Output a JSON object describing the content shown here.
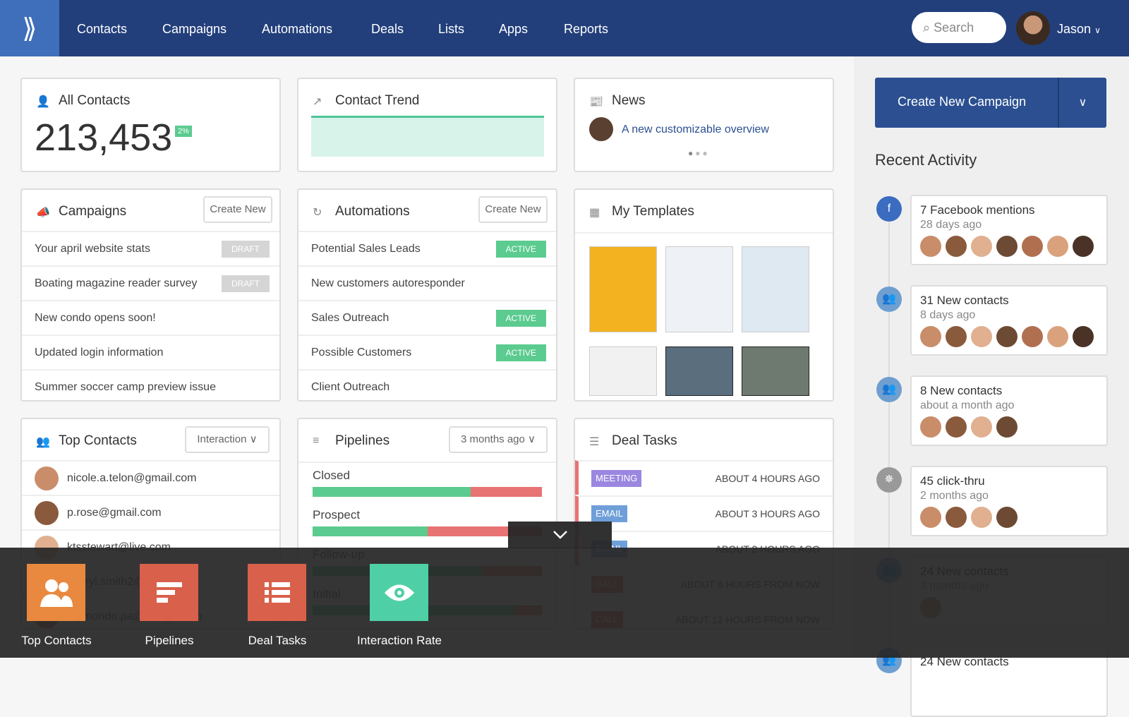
{
  "nav": {
    "items": [
      "Contacts",
      "Campaigns",
      "Automations",
      "Deals",
      "Lists",
      "Apps",
      "Reports"
    ],
    "search_placeholder": "Search",
    "user": "Jason"
  },
  "all_contacts": {
    "title": "All Contacts",
    "value": "213,453",
    "change": "2%"
  },
  "contact_trend": {
    "title": "Contact Trend"
  },
  "news": {
    "title": "News",
    "headline": "A new customizable overview"
  },
  "campaigns": {
    "title": "Campaigns",
    "create": "Create New",
    "items": [
      {
        "name": "Your april website stats",
        "status": "DRAFT"
      },
      {
        "name": "Boating magazine reader survey",
        "status": "DRAFT"
      },
      {
        "name": "New condo opens soon!",
        "status": ""
      },
      {
        "name": "Updated login information",
        "status": ""
      },
      {
        "name": "Summer soccer camp preview issue",
        "status": ""
      }
    ]
  },
  "automations": {
    "title": "Automations",
    "create": "Create New",
    "items": [
      {
        "name": "Potential Sales Leads",
        "status": "ACTIVE"
      },
      {
        "name": "New customers autoresponder",
        "status": ""
      },
      {
        "name": "Sales Outreach",
        "status": "ACTIVE"
      },
      {
        "name": "Possible Customers",
        "status": "ACTIVE"
      },
      {
        "name": "Client Outreach",
        "status": ""
      }
    ]
  },
  "templates": {
    "title": "My Templates"
  },
  "top_contacts": {
    "title": "Top Contacts",
    "filter": "Interaction",
    "items": [
      "nicole.a.telon@gmail.com",
      "p.rose@gmail.com",
      "ktsstewart@live.com",
      "cheryl.smith2@gmail.com",
      "raymondo.pa@design.com"
    ]
  },
  "pipelines": {
    "title": "Pipelines",
    "filter": "3 months ago",
    "items": [
      {
        "name": "Closed",
        "won": 0.69
      },
      {
        "name": "Prospect",
        "won": 0.5
      },
      {
        "name": "Follow-up",
        "won": 0.74
      },
      {
        "name": "Initial",
        "won": 0.88
      }
    ]
  },
  "deal_tasks": {
    "title": "Deal Tasks",
    "items": [
      {
        "type": "MEETING",
        "color": "#9b87e0",
        "when": "ABOUT 4 HOURS AGO"
      },
      {
        "type": "EMAIL",
        "color": "#6f9fd8",
        "when": "ABOUT 3 HOURS AGO"
      },
      {
        "type": "EMAIL",
        "color": "#6f9fd8",
        "when": "ABOUT 2 HOURS AGO"
      },
      {
        "type": "CALL",
        "color": "#e06a5a",
        "when": "ABOUT 6 HOURS FROM NOW"
      },
      {
        "type": "CALL",
        "color": "#e06a5a",
        "when": "ABOUT 12 HOURS FROM NOW"
      }
    ]
  },
  "sidebar": {
    "create_campaign": "Create New Campaign",
    "recent_title": "Recent Activity",
    "activity": [
      {
        "title": "7 Facebook mentions",
        "time": "28 days ago",
        "icon": "facebook-icon",
        "avatars": 7
      },
      {
        "title": "31 New contacts",
        "time": "8 days ago",
        "icon": "contacts-icon",
        "avatars": 7
      },
      {
        "title": "8 New contacts",
        "time": "about a month ago",
        "icon": "contacts-icon",
        "avatars": 4
      },
      {
        "title": "45 click-thru",
        "time": "2 months ago",
        "icon": "click-icon",
        "avatars": 4
      },
      {
        "title": "24 New contacts",
        "time": "3 months ago",
        "icon": "contacts-icon",
        "avatars": 1
      },
      {
        "title": "24 New contacts",
        "time": "",
        "icon": "contacts-icon",
        "avatars": 0
      }
    ]
  },
  "drawer": {
    "tiles": [
      {
        "label": "Top Contacts",
        "color": "#e8893f"
      },
      {
        "label": "Pipelines",
        "color": "#d9604a"
      },
      {
        "label": "Deal Tasks",
        "color": "#d9604a"
      },
      {
        "label": "Interaction Rate",
        "color": "#4fcfa5"
      }
    ]
  },
  "colors": {
    "header": "#223f7b",
    "accent": "#2b4f91",
    "active": "#5bcb8f",
    "draft": "#d5d5d5"
  }
}
